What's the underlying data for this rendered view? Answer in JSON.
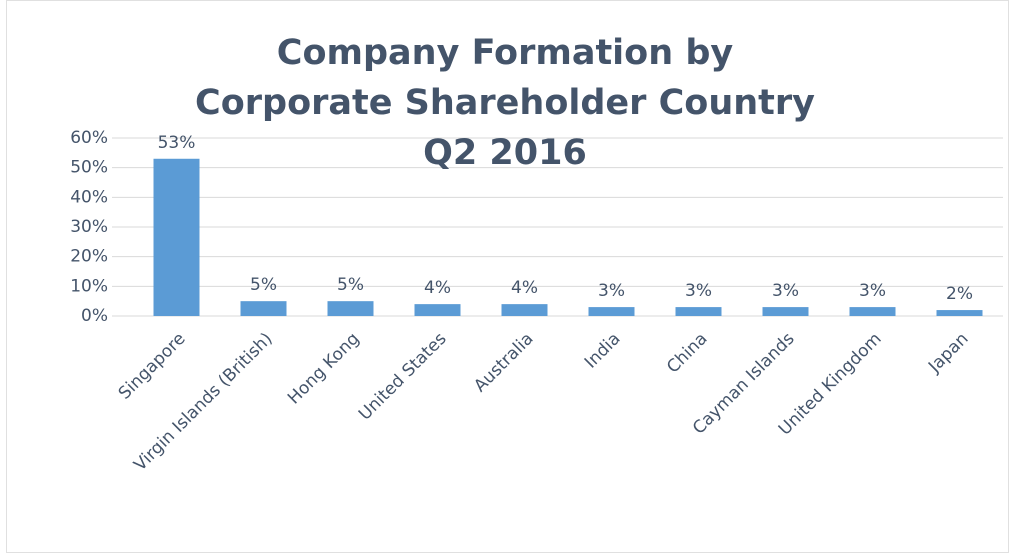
{
  "chart_data": {
    "type": "bar",
    "title": "Company Formation by Corporate Shareholder Country Q2 2016",
    "categories": [
      "Singapore",
      "Virgin Islands (British)",
      "Hong Kong",
      "United States",
      "Australia",
      "India",
      "China",
      "Cayman Islands",
      "United Kingdom",
      "Japan"
    ],
    "values": [
      53,
      5,
      5,
      4,
      4,
      3,
      3,
      3,
      3,
      2
    ],
    "value_labels": [
      "53%",
      "5%",
      "5%",
      "4%",
      "4%",
      "3%",
      "3%",
      "3%",
      "3%",
      "2%"
    ],
    "color": "#5b9bd5",
    "ylim": [
      0,
      60
    ],
    "yticks": [
      {
        "value": 0,
        "label": "0%"
      },
      {
        "value": 10,
        "label": "10%"
      },
      {
        "value": 20,
        "label": "20%"
      },
      {
        "value": 30,
        "label": "30%"
      },
      {
        "value": 40,
        "label": "40%"
      },
      {
        "value": 50,
        "label": "50%"
      },
      {
        "value": 60,
        "label": "60%"
      }
    ],
    "grid": true
  }
}
